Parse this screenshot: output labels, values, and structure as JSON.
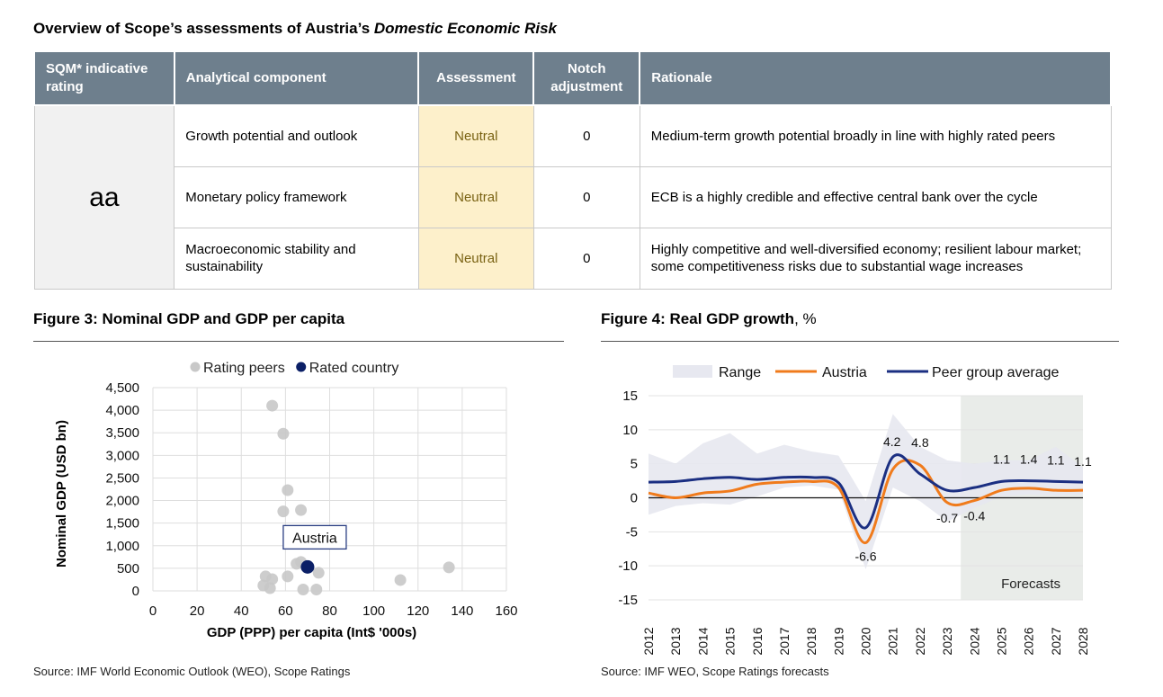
{
  "page_title": {
    "main": "Overview of Scope’s assessments of Austria’s ",
    "italic": "Domestic Economic Risk"
  },
  "table": {
    "headers": [
      "SQM* indicative rating",
      "Analytical component",
      "Assessment",
      "Notch adjustment",
      "Rationale"
    ],
    "rating": "aa",
    "rows": [
      {
        "component": "Growth potential and outlook",
        "assessment": "Neutral",
        "notch": "0",
        "rationale": "Medium-term growth potential broadly in line with highly rated peers"
      },
      {
        "component": "Monetary policy framework",
        "assessment": "Neutral",
        "notch": "0",
        "rationale": "ECB is a highly credible and effective central bank over the cycle"
      },
      {
        "component": "Macroeconomic stability and sustainability",
        "assessment": "Neutral",
        "notch": "0",
        "rationale": "Highly competitive and well-diversified economy; resilient labour market; some competitiveness risks due to substantial wage increases"
      }
    ]
  },
  "figure3": {
    "title": "Figure 3: Nominal GDP and GDP per capita",
    "source": "Source: IMF World Economic Outlook (WEO), Scope Ratings",
    "annotation": "Austria"
  },
  "figure4": {
    "title_bold": "Figure 4: Real GDP growth",
    "title_norm": ", %",
    "source": "Source: IMF WEO, Scope Ratings forecasts",
    "forecast_label": "Forecasts"
  },
  "chart_data": [
    {
      "type": "scatter",
      "title": "Figure 3: Nominal GDP and GDP per capita",
      "xlabel": "GDP (PPP) per capita (Int$ '000s)",
      "ylabel": "Nominal GDP (USD bn)",
      "xlim": [
        0,
        160
      ],
      "ylim": [
        0,
        4500
      ],
      "xticks": [
        0,
        20,
        40,
        60,
        80,
        100,
        120,
        140,
        160
      ],
      "yticks": [
        0,
        500,
        1000,
        1500,
        2000,
        2500,
        3000,
        3500,
        4000,
        4500
      ],
      "legend": "top",
      "grid": true,
      "series": [
        {
          "name": "Rating peers",
          "color": "#c8c8c8",
          "points": [
            [
              54,
              4100
            ],
            [
              59,
              3480
            ],
            [
              61,
              2230
            ],
            [
              67,
              1790
            ],
            [
              59,
              1760
            ],
            [
              67,
              640
            ],
            [
              65,
              600
            ],
            [
              75,
              400
            ],
            [
              61,
              320
            ],
            [
              51,
              320
            ],
            [
              54,
              260
            ],
            [
              50,
              120
            ],
            [
              53,
              60
            ],
            [
              68,
              30
            ],
            [
              74,
              30
            ],
            [
              112,
              240
            ],
            [
              134,
              520
            ]
          ]
        },
        {
          "name": "Rated country",
          "color": "#0b1f66",
          "points": [
            [
              70,
              530
            ]
          ]
        }
      ]
    },
    {
      "type": "line",
      "title": "Figure 4: Real GDP growth, %",
      "x": [
        2012,
        2013,
        2014,
        2015,
        2016,
        2017,
        2018,
        2019,
        2020,
        2021,
        2022,
        2023,
        2024,
        2025,
        2026,
        2027,
        2028
      ],
      "ylim": [
        -15,
        15
      ],
      "yticks": [
        -15,
        -10,
        -5,
        0,
        5,
        10,
        15
      ],
      "forecast_start": 2024,
      "legend": "top",
      "grid": true,
      "series": [
        {
          "name": "Range",
          "color": "#e7e8f0",
          "low": [
            -2.5,
            -1.2,
            -0.8,
            -1.0,
            0.2,
            1.5,
            1.8,
            1.2,
            -10.5,
            1.5,
            -0.5,
            -3.5,
            -1.5,
            0.2,
            0.5,
            0.3,
            0.5
          ],
          "high": [
            6.5,
            5.0,
            8.0,
            9.5,
            6.5,
            7.8,
            6.8,
            6.2,
            -0.5,
            12.3,
            7.5,
            5.5,
            5.0,
            5.5,
            5.5,
            7.5,
            4.5
          ]
        },
        {
          "name": "Austria",
          "color": "#f07b1c",
          "values": [
            0.7,
            0.0,
            0.7,
            1.0,
            2.0,
            2.3,
            2.4,
            1.5,
            -6.6,
            4.2,
            4.8,
            -0.7,
            -0.4,
            1.1,
            1.4,
            1.1,
            1.1
          ]
        },
        {
          "name": "Peer group average",
          "color": "#1b2f82",
          "values": [
            2.3,
            2.4,
            2.8,
            3.0,
            2.7,
            3.0,
            3.0,
            2.2,
            -4.4,
            6.0,
            3.5,
            1.1,
            1.5,
            2.4,
            2.5,
            2.4,
            2.3
          ]
        }
      ],
      "data_labels": [
        {
          "x": 2020,
          "text": "-6.6"
        },
        {
          "x": 2021,
          "text": "4.2"
        },
        {
          "x": 2022,
          "text": "4.8"
        },
        {
          "x": 2023,
          "text": "-0.7"
        },
        {
          "x": 2024,
          "text": "-0.4"
        },
        {
          "x": 2025,
          "text": "1.1"
        },
        {
          "x": 2026,
          "text": "1.4"
        },
        {
          "x": 2027,
          "text": "1.1"
        },
        {
          "x": 2028,
          "text": "1.1"
        }
      ]
    }
  ]
}
